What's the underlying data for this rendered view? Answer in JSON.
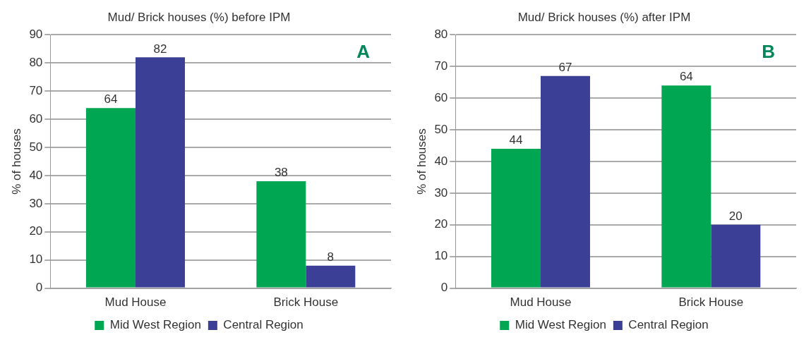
{
  "chart_data": [
    {
      "type": "bar",
      "title": "Mud/ Brick houses (%) before IPM",
      "ylabel": "% of houses",
      "categories": [
        "Mud House",
        "Brick House"
      ],
      "series": [
        {
          "name": "Mid West Region",
          "color": "#00a651",
          "values": [
            64,
            38
          ]
        },
        {
          "name": "Central Region",
          "color": "#3c3f96",
          "values": [
            82,
            8
          ]
        }
      ],
      "ylim": [
        0,
        90
      ],
      "yticks": [
        0,
        10,
        20,
        30,
        40,
        50,
        60,
        70,
        80,
        90
      ],
      "grid": "y",
      "legend": "bottom",
      "data_labels": true,
      "annotations": [
        "A"
      ]
    },
    {
      "type": "bar",
      "title": "Mud/ Brick houses (%) after IPM",
      "ylabel": "% of houses",
      "categories": [
        "Mud House",
        "Brick House"
      ],
      "series": [
        {
          "name": "Mid West Region",
          "color": "#00a651",
          "values": [
            44,
            64
          ]
        },
        {
          "name": "Central Region",
          "color": "#3c3f96",
          "values": [
            67,
            20
          ]
        }
      ],
      "ylim": [
        0,
        80
      ],
      "yticks": [
        0,
        10,
        20,
        30,
        40,
        50,
        60,
        70,
        80
      ],
      "grid": "y",
      "legend": "bottom",
      "data_labels": true,
      "annotations": [
        "B"
      ]
    }
  ]
}
